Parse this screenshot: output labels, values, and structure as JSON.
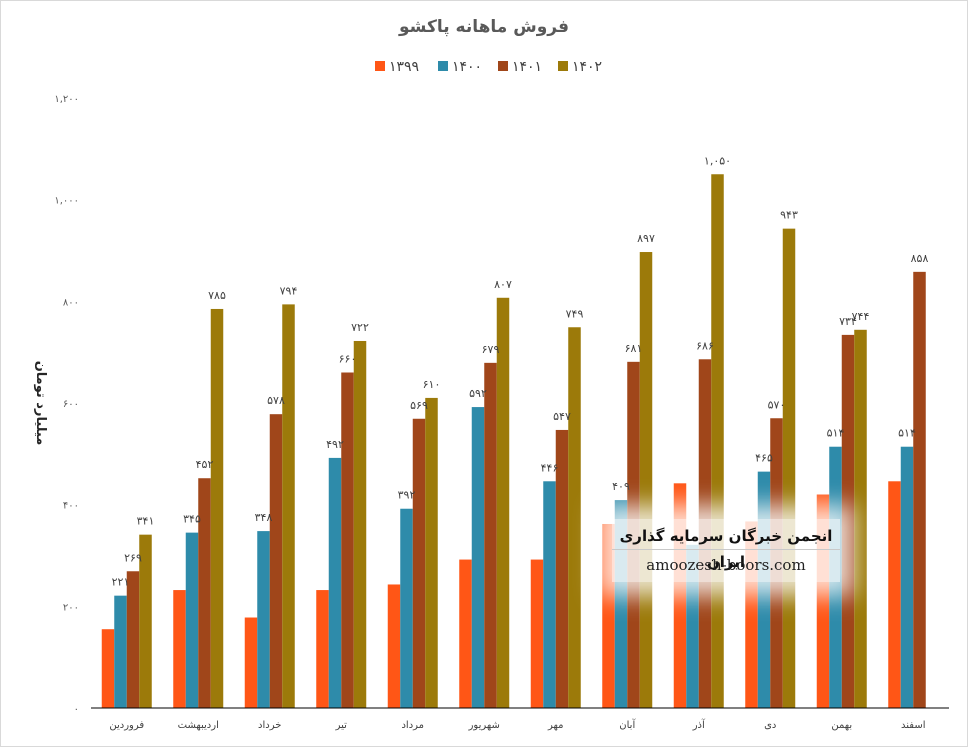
{
  "chart_data": {
    "type": "bar",
    "title": "فروش ماهانه پاکشو",
    "ylabel": "میلیارد تومان",
    "xlabel": "",
    "ylim": [
      0,
      1200
    ],
    "yticks": [
      0,
      200,
      400,
      600,
      800,
      1000,
      1200
    ],
    "ytick_labels": [
      "۰",
      "۲۰۰",
      "۴۰۰",
      "۶۰۰",
      "۸۰۰",
      "۱,۰۰۰",
      "۱,۲۰۰"
    ],
    "grid": false,
    "legend_position": "top",
    "categories": [
      "فروردین",
      "اردیبهشت",
      "خرداد",
      "تیر",
      "مرداد",
      "شهریور",
      "مهر",
      "آبان",
      "آذر",
      "دی",
      "بهمن",
      "اسفند"
    ],
    "series": [
      {
        "name": "۱۳۹۹",
        "color": "#FF5616",
        "values": [
          155,
          232,
          178,
          232,
          243,
          292,
          292,
          362,
          442,
          367,
          420,
          446
        ],
        "labels": [
          "",
          "",
          "",
          "",
          "",
          "",
          "",
          "",
          "",
          "",
          "",
          ""
        ]
      },
      {
        "name": "۱۴۰۰",
        "color": "#2E8BAA",
        "values": [
          221,
          345,
          348,
          492,
          392,
          592,
          446,
          409,
          321,
          465,
          514,
          514
        ],
        "labels": [
          "۲۲۱",
          "۳۴۵",
          "۳۴۸",
          "۴۹۲",
          "۳۹۲",
          "۵۹۲",
          "۴۴۶",
          "۴۰۹",
          "",
          "۴۶۵",
          "۵۱۴",
          "۵۱۴"
        ]
      },
      {
        "name": "۱۴۰۱",
        "color": "#A0461A",
        "values": [
          269,
          452,
          578,
          660,
          569,
          679,
          547,
          681,
          686,
          570,
          734,
          858
        ],
        "labels": [
          "۲۶۹",
          "۴۵۲",
          "۵۷۸",
          "۶۶۰",
          "۵۶۹",
          "۶۷۹",
          "۵۴۷",
          "۶۸۱",
          "۶۸۶",
          "۵۷۰",
          "۷۳۴",
          "۸۵۸"
        ]
      },
      {
        "name": "۱۴۰۲",
        "color": "#9C7A0A",
        "values": [
          341,
          785,
          794,
          722,
          610,
          807,
          749,
          897,
          1050,
          943,
          744,
          null
        ],
        "labels": [
          "۳۴۱",
          "۷۸۵",
          "۷۹۴",
          "۷۲۲",
          "۶۱۰",
          "۸۰۷",
          "۷۴۹",
          "۸۹۷",
          "۱,۰۵۰",
          "۹۴۳",
          "۷۴۴",
          ""
        ]
      }
    ]
  },
  "watermark": {
    "title": "انجمن خبرگان سرمایه گذاری ایران",
    "url": "amoozesh-boors.com"
  }
}
